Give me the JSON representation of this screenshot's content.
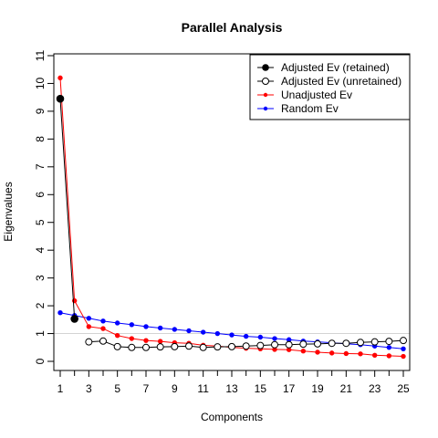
{
  "chart_data": {
    "type": "line",
    "title": "Parallel Analysis",
    "xlabel": "Components",
    "ylabel": "Eigenvalues",
    "xlim": [
      1,
      25
    ],
    "ylim": [
      0,
      11
    ],
    "x_ticks": [
      1,
      3,
      5,
      7,
      9,
      11,
      13,
      15,
      17,
      19,
      21,
      23,
      25
    ],
    "x_minor_ticks": [
      2,
      4,
      6,
      8,
      10,
      12,
      14,
      16,
      18,
      20,
      22,
      24
    ],
    "y_ticks": [
      0,
      1,
      2,
      3,
      4,
      5,
      6,
      7,
      8,
      9,
      10,
      11
    ],
    "reference_line": 1,
    "legend_position": "top-right",
    "x": [
      1,
      2,
      3,
      4,
      5,
      6,
      7,
      8,
      9,
      10,
      11,
      12,
      13,
      14,
      15,
      16,
      17,
      18,
      19,
      20,
      21,
      22,
      23,
      24,
      25
    ],
    "series": [
      {
        "name": "Adjusted Ev (retained)",
        "color": "#000000",
        "marker": "filled-circle",
        "x": [
          1,
          2
        ],
        "values": [
          9.45,
          1.53
        ]
      },
      {
        "name": "Adjusted Ev (unretained)",
        "color": "#000000",
        "marker": "open-circle",
        "x": [
          3,
          4,
          5,
          6,
          7,
          8,
          9,
          10,
          11,
          12,
          13,
          14,
          15,
          16,
          17,
          18,
          19,
          20,
          21,
          22,
          23,
          24,
          25
        ],
        "values": [
          0.7,
          0.73,
          0.53,
          0.5,
          0.5,
          0.52,
          0.53,
          0.55,
          0.5,
          0.52,
          0.53,
          0.55,
          0.57,
          0.6,
          0.6,
          0.62,
          0.63,
          0.65,
          0.65,
          0.68,
          0.7,
          0.72,
          0.75
        ]
      },
      {
        "name": "Unadjusted Ev",
        "color": "#ff0000",
        "marker": "small-dot",
        "x": [
          1,
          2,
          3,
          4,
          5,
          6,
          7,
          8,
          9,
          10,
          11,
          12,
          13,
          14,
          15,
          16,
          17,
          18,
          19,
          20,
          21,
          22,
          23,
          24,
          25
        ],
        "values": [
          10.2,
          2.18,
          1.25,
          1.18,
          0.93,
          0.82,
          0.75,
          0.72,
          0.67,
          0.65,
          0.58,
          0.55,
          0.5,
          0.47,
          0.45,
          0.43,
          0.42,
          0.37,
          0.33,
          0.3,
          0.28,
          0.27,
          0.22,
          0.2,
          0.18
        ]
      },
      {
        "name": "Random Ev",
        "color": "#0000ff",
        "marker": "small-dot",
        "x": [
          1,
          2,
          3,
          4,
          5,
          6,
          7,
          8,
          9,
          10,
          11,
          12,
          13,
          14,
          15,
          16,
          17,
          18,
          19,
          20,
          21,
          22,
          23,
          24,
          25
        ],
        "values": [
          1.75,
          1.65,
          1.55,
          1.45,
          1.38,
          1.32,
          1.25,
          1.2,
          1.15,
          1.1,
          1.05,
          1.0,
          0.95,
          0.9,
          0.87,
          0.82,
          0.78,
          0.73,
          0.7,
          0.67,
          0.63,
          0.6,
          0.55,
          0.5,
          0.45
        ]
      }
    ]
  }
}
